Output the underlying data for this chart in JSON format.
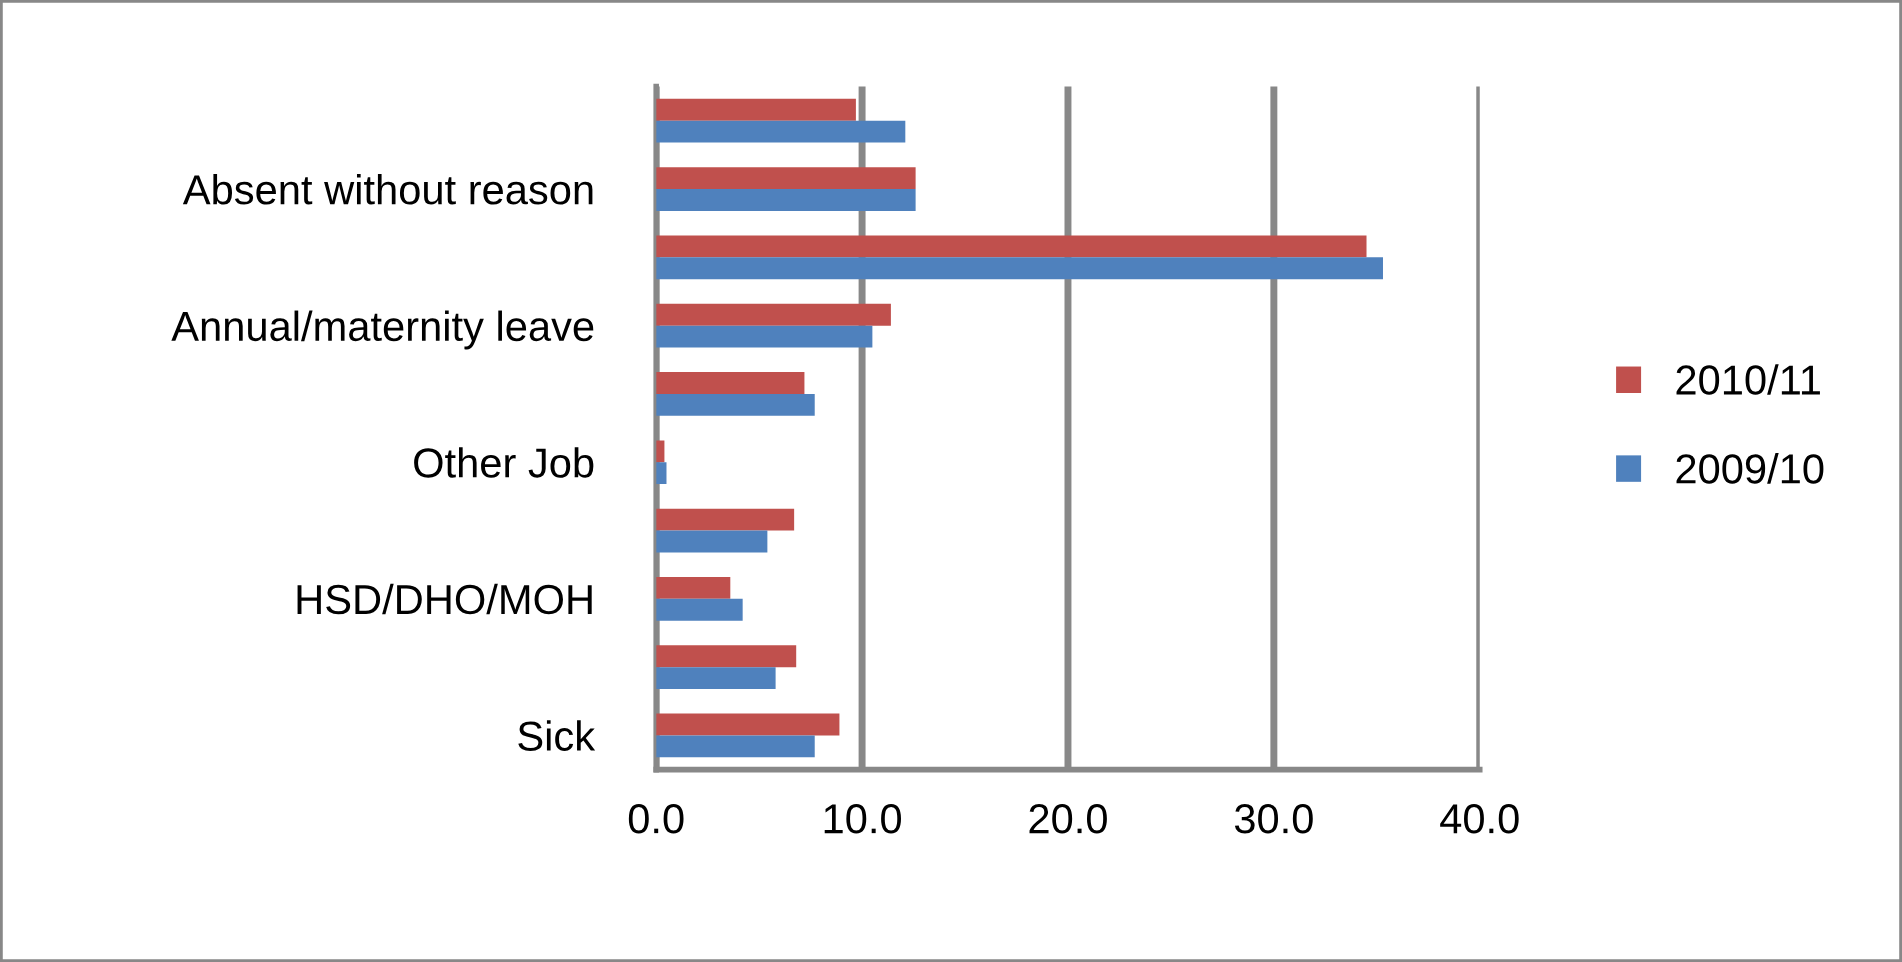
{
  "chart_data": {
    "type": "bar",
    "orientation": "horizontal",
    "categories": [
      null,
      "Absent without reason",
      null,
      "Annual/maternity leave",
      null,
      "Other Job",
      null,
      "HSD/DHO/MOH",
      null,
      "Sick"
    ],
    "series": [
      {
        "name": "2010/11",
        "color": "#c0504d",
        "values": [
          9.7,
          12.6,
          34.5,
          11.4,
          7.2,
          0.4,
          6.7,
          3.6,
          6.8,
          8.9
        ]
      },
      {
        "name": "2009/10",
        "color": "#4f81bd",
        "values": [
          12.1,
          12.6,
          35.3,
          10.5,
          7.7,
          0.5,
          5.4,
          4.2,
          5.8,
          7.7
        ]
      }
    ],
    "xlim": [
      0,
      40
    ],
    "xticks": [
      {
        "value": 0,
        "label": "0.0"
      },
      {
        "value": 10,
        "label": "10.0"
      },
      {
        "value": 20,
        "label": "20.0"
      },
      {
        "value": 30,
        "label": "30.0"
      },
      {
        "value": 40,
        "label": "40.0"
      }
    ],
    "grid": "x",
    "legend": "right"
  }
}
